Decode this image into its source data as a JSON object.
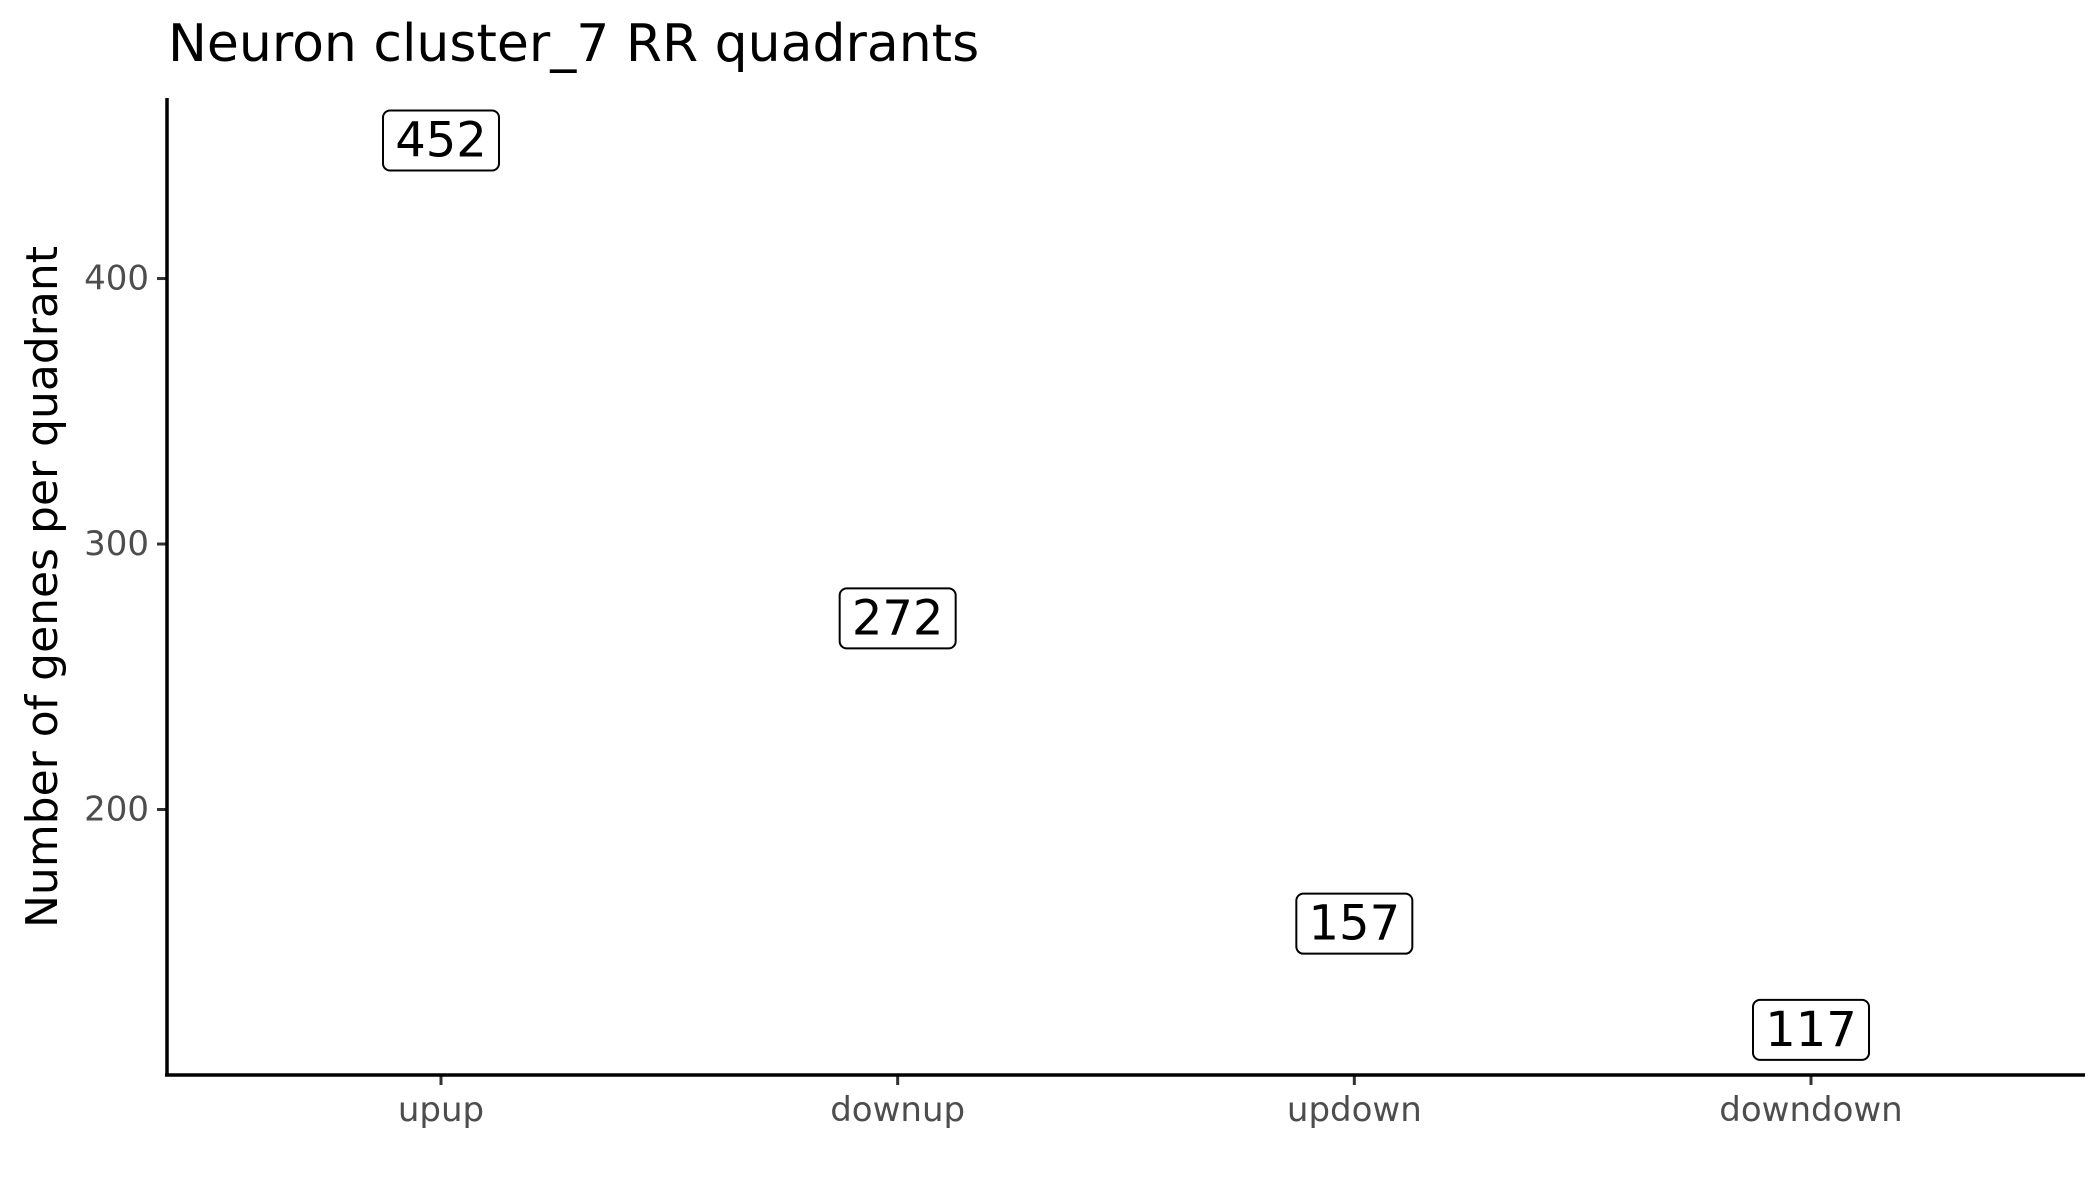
{
  "chart_data": {
    "type": "scatter",
    "title": "Neuron cluster_7 RR quadrants",
    "xlabel": "",
    "ylabel": "Number of genes per quadrant",
    "categories": [
      "upup",
      "downup",
      "updown",
      "downdown"
    ],
    "values": [
      452,
      272,
      157,
      117
    ],
    "data_labels": [
      "452",
      "272",
      "157",
      "117"
    ],
    "yticks": [
      200,
      300,
      400
    ],
    "ytick_labels": [
      "200",
      "300",
      "400"
    ],
    "ylim": [
      100,
      468
    ],
    "grid": false,
    "legend": "none",
    "mark": "boxed-label"
  }
}
